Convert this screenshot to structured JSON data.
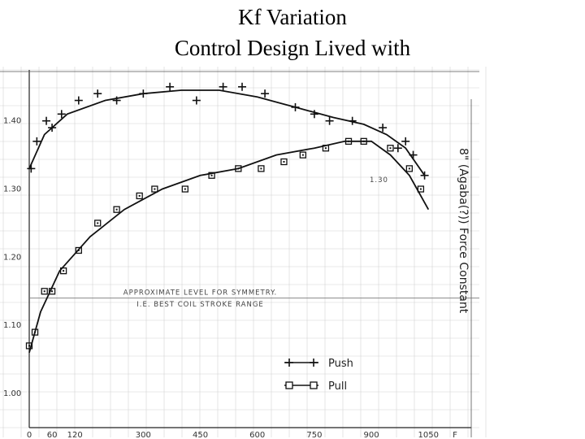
{
  "slide": {
    "title_line1": "Kf Variation",
    "title_line2": "Control Design Lived with"
  },
  "chart_data": {
    "type": "scatter",
    "xlim": [
      0,
      1120
    ],
    "ylim": [
      0.95,
      1.47
    ],
    "x_ticks": [
      "0",
      "60",
      "120",
      "300",
      "450",
      "600",
      "750",
      "900",
      "1050",
      "F"
    ],
    "x_tick_values": [
      0,
      60,
      120,
      300,
      450,
      600,
      750,
      900,
      1050,
      1120
    ],
    "y_ticks": [
      "1.00",
      "1.10",
      "1.20",
      "1.30",
      "1.40"
    ],
    "y_tick_values": [
      1.0,
      1.1,
      1.2,
      1.3,
      1.4
    ],
    "grid": true,
    "legend_position": "bottom-right",
    "series": [
      {
        "name": "Push",
        "marker": "plus",
        "color": "#111111",
        "points": [
          [
            5,
            1.33
          ],
          [
            20,
            1.37
          ],
          [
            45,
            1.4
          ],
          [
            60,
            1.39
          ],
          [
            85,
            1.41
          ],
          [
            130,
            1.43
          ],
          [
            180,
            1.44
          ],
          [
            230,
            1.43
          ],
          [
            300,
            1.44
          ],
          [
            370,
            1.45
          ],
          [
            440,
            1.43
          ],
          [
            510,
            1.45
          ],
          [
            560,
            1.45
          ],
          [
            620,
            1.44
          ],
          [
            700,
            1.42
          ],
          [
            750,
            1.41
          ],
          [
            790,
            1.4
          ],
          [
            850,
            1.4
          ],
          [
            930,
            1.39
          ],
          [
            970,
            1.36
          ],
          [
            990,
            1.37
          ],
          [
            1010,
            1.35
          ],
          [
            1040,
            1.32
          ]
        ],
        "fit": [
          [
            0,
            1.33
          ],
          [
            40,
            1.38
          ],
          [
            100,
            1.41
          ],
          [
            200,
            1.43
          ],
          [
            300,
            1.44
          ],
          [
            400,
            1.445
          ],
          [
            500,
            1.445
          ],
          [
            600,
            1.435
          ],
          [
            700,
            1.42
          ],
          [
            800,
            1.405
          ],
          [
            880,
            1.395
          ],
          [
            940,
            1.38
          ],
          [
            990,
            1.36
          ],
          [
            1040,
            1.32
          ]
        ]
      },
      {
        "name": "Pull",
        "marker": "square",
        "color": "#111111",
        "points": [
          [
            0,
            1.07
          ],
          [
            15,
            1.09
          ],
          [
            40,
            1.15
          ],
          [
            60,
            1.15
          ],
          [
            90,
            1.18
          ],
          [
            130,
            1.21
          ],
          [
            180,
            1.25
          ],
          [
            230,
            1.27
          ],
          [
            290,
            1.29
          ],
          [
            330,
            1.3
          ],
          [
            410,
            1.3
          ],
          [
            480,
            1.32
          ],
          [
            550,
            1.33
          ],
          [
            610,
            1.33
          ],
          [
            670,
            1.34
          ],
          [
            720,
            1.35
          ],
          [
            780,
            1.36
          ],
          [
            840,
            1.37
          ],
          [
            880,
            1.37
          ],
          [
            950,
            1.36
          ],
          [
            1000,
            1.33
          ],
          [
            1030,
            1.3
          ]
        ],
        "fit": [
          [
            0,
            1.06
          ],
          [
            30,
            1.12
          ],
          [
            80,
            1.18
          ],
          [
            160,
            1.23
          ],
          [
            250,
            1.27
          ],
          [
            350,
            1.3
          ],
          [
            450,
            1.32
          ],
          [
            550,
            1.33
          ],
          [
            650,
            1.35
          ],
          [
            750,
            1.36
          ],
          [
            830,
            1.37
          ],
          [
            900,
            1.37
          ],
          [
            950,
            1.35
          ],
          [
            1000,
            1.32
          ],
          [
            1050,
            1.27
          ]
        ]
      }
    ],
    "annotations": [
      {
        "text": "APPROXIMATE LEVEL FOR SYMMETRY.",
        "x": 450,
        "y": 1.145
      },
      {
        "text": "I.E. BEST COIL STROKE RANGE",
        "x": 450,
        "y": 1.128
      },
      {
        "text": "1.30",
        "x": 920,
        "y": 1.31
      }
    ],
    "reference_line_y": 1.14,
    "side_label": "8\" (Agaba(?)) Force Constant",
    "legend": [
      {
        "label": "Push",
        "marker": "plus"
      },
      {
        "label": "Pull",
        "marker": "square"
      }
    ]
  }
}
